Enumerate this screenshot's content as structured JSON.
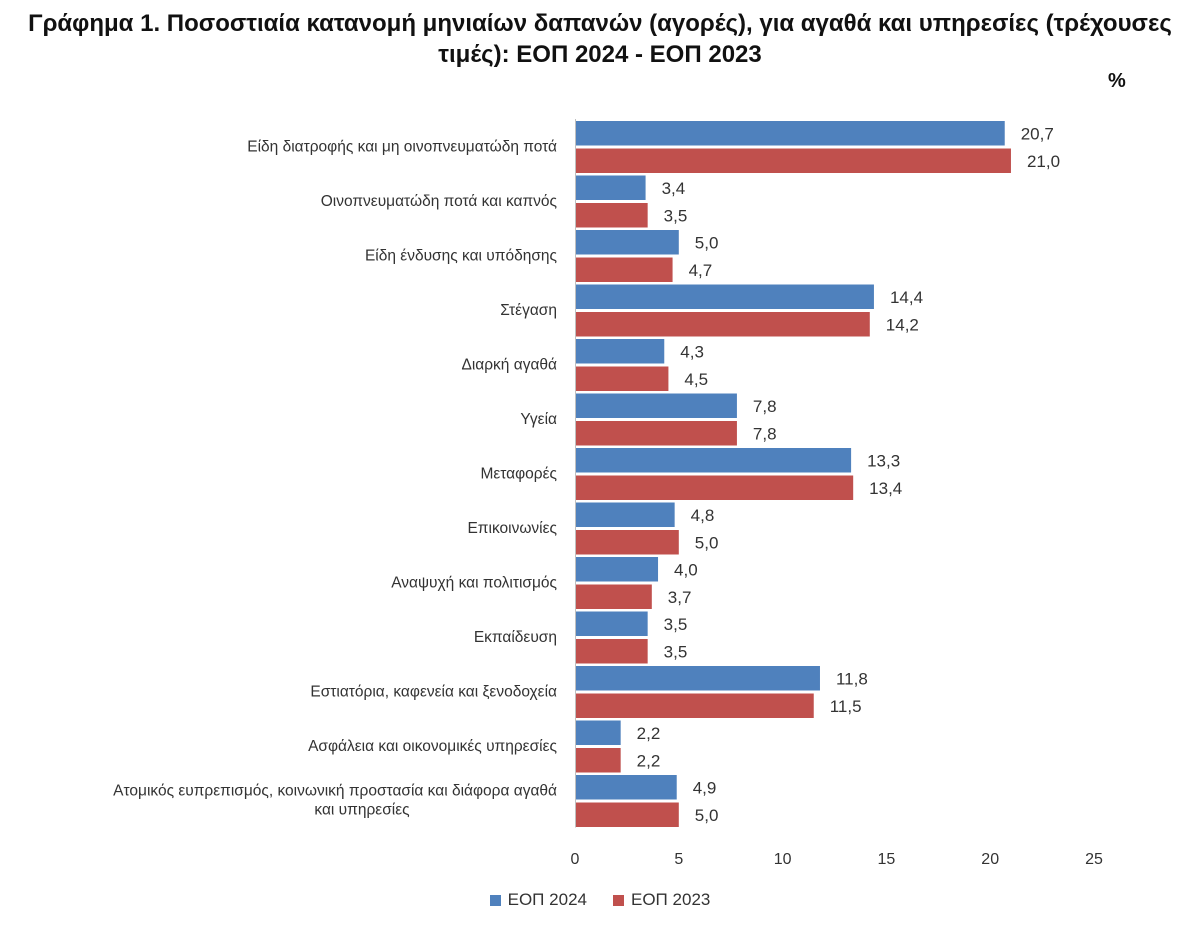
{
  "title": {
    "line1": "Γράφημα 1. Ποσοστιαία κατανομή μηνιαίων δαπανών (αγορές), για αγαθά και υπηρεσίες (τρέχουσες",
    "line2": "τιμές): ΕΟΠ 2024 - ΕΟΠ 2023"
  },
  "chart_data": {
    "type": "bar",
    "orientation": "horizontal",
    "unit": "%",
    "categories": [
      "Είδη διατροφής και μη οινοπνευματώδη ποτά",
      "Οινοπνευματώδη ποτά και καπνός",
      "Είδη ένδυσης και υπόδησης",
      "Στέγαση",
      "Διαρκή αγαθά",
      "Υγεία",
      "Μεταφορές",
      "Επικοινωνίες",
      "Αναψυχή και πολιτισμός",
      "Εκπαίδευση",
      "Εστιατόρια, καφενεία και ξενοδοχεία",
      "Ασφάλεια και  οικονομικές υπηρεσίες",
      "Ατομικός ευπρεπισμός, κοινωνική προστασία και διάφορα αγαθά και υπηρεσίες"
    ],
    "series": [
      {
        "name": "ΕΟΠ 2024",
        "color": "#4f81bd",
        "values": [
          20.7,
          3.4,
          5.0,
          14.4,
          4.3,
          7.8,
          13.3,
          4.8,
          4.0,
          3.5,
          11.8,
          2.2,
          4.9
        ],
        "labels": [
          "20,7",
          "3,4",
          "5,0",
          "14,4",
          "4,3",
          "7,8",
          "13,3",
          "4,8",
          "4,0",
          "3,5",
          "11,8",
          "2,2",
          "4,9"
        ]
      },
      {
        "name": "ΕΟΠ 2023",
        "color": "#c0504d",
        "values": [
          21.0,
          3.5,
          4.7,
          14.2,
          4.5,
          7.8,
          13.4,
          5.0,
          3.7,
          3.5,
          11.5,
          2.2,
          5.0
        ],
        "labels": [
          "21,0",
          "3,5",
          "4,7",
          "14,2",
          "4,5",
          "7,8",
          "13,4",
          "5,0",
          "3,7",
          "3,5",
          "11,5",
          "2,2",
          "5,0"
        ]
      }
    ],
    "xlim": [
      0,
      25
    ],
    "xticks": [
      0,
      5,
      10,
      15,
      20,
      25
    ],
    "grid": false,
    "legend_position": "bottom"
  }
}
